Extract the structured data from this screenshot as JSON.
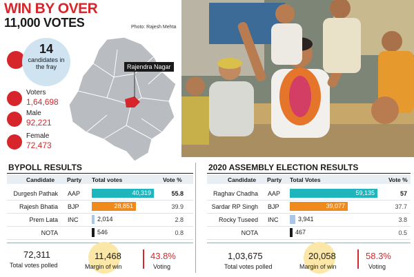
{
  "header": {
    "headline": "WIN BY OVER",
    "subhead": "11,000 VOTES",
    "credit": "Photo: Rajesh Mehta"
  },
  "stats": {
    "candidates_num": "14",
    "candidates_label": "candidates in the fray",
    "voters_label": "Voters",
    "voters_value": "1,64,698",
    "male_label": "Male",
    "male_value": "92,221",
    "female_label": "Female",
    "female_value": "72,473"
  },
  "map": {
    "tag": "Rajendra Nagar"
  },
  "bypoll": {
    "title": "BYPOLL RESULTS",
    "headers": {
      "candidate": "Candidate",
      "party": "Party",
      "total": "Total votes",
      "pct": "Vote %"
    },
    "rows": [
      {
        "candidate": "Durgesh Pathak",
        "party": "AAP",
        "votes": "40,319",
        "votes_n": 40319,
        "pct": "55.8",
        "color": "#1fb5bd"
      },
      {
        "candidate": "Rajesh Bhatia",
        "party": "BJP",
        "votes": "28,851",
        "votes_n": 28851,
        "pct": "39.9",
        "color": "#f18a1c"
      },
      {
        "candidate": "Prem Lata",
        "party": "INC",
        "votes": "2,014",
        "votes_n": 2014,
        "pct": "2.8",
        "color": "#a9c6e6"
      },
      {
        "candidate": "NOTA",
        "party": "",
        "votes": "546",
        "votes_n": 546,
        "pct": "0.8",
        "color": "#1a1a1a"
      }
    ],
    "summary": {
      "total_num": "72,311",
      "total_lab": "Total votes polled",
      "margin_num": "11,468",
      "margin_lab": "Margin of win",
      "voting_num": "43.8%",
      "voting_lab": "Voting"
    }
  },
  "assembly": {
    "title": "2020 ASSEMBLY ELECTION RESULTS",
    "headers": {
      "candidate": "Candidate",
      "party": "Party",
      "total": "Total Votes",
      "pct": "Vote %"
    },
    "rows": [
      {
        "candidate": "Raghav Chadha",
        "party": "AAP",
        "votes": "59,135",
        "votes_n": 59135,
        "pct": "57",
        "color": "#1fb5bd"
      },
      {
        "candidate": "Sardar RP Singh",
        "party": "BJP",
        "votes": "39,077",
        "votes_n": 39077,
        "pct": "37.7",
        "color": "#f18a1c"
      },
      {
        "candidate": "Rocky Tuseed",
        "party": "INC",
        "votes": "3,941",
        "votes_n": 3941,
        "pct": "3.8",
        "color": "#a9c6e6"
      },
      {
        "candidate": "NOTA",
        "party": "",
        "votes": "467",
        "votes_n": 467,
        "pct": "0.5",
        "color": "#1a1a1a"
      }
    ],
    "summary": {
      "total_num": "1,03,675",
      "total_lab": "Total votes polled",
      "margin_num": "20,058",
      "margin_lab": "Margin of win",
      "voting_num": "58.3%",
      "voting_lab": "Voting"
    }
  }
}
